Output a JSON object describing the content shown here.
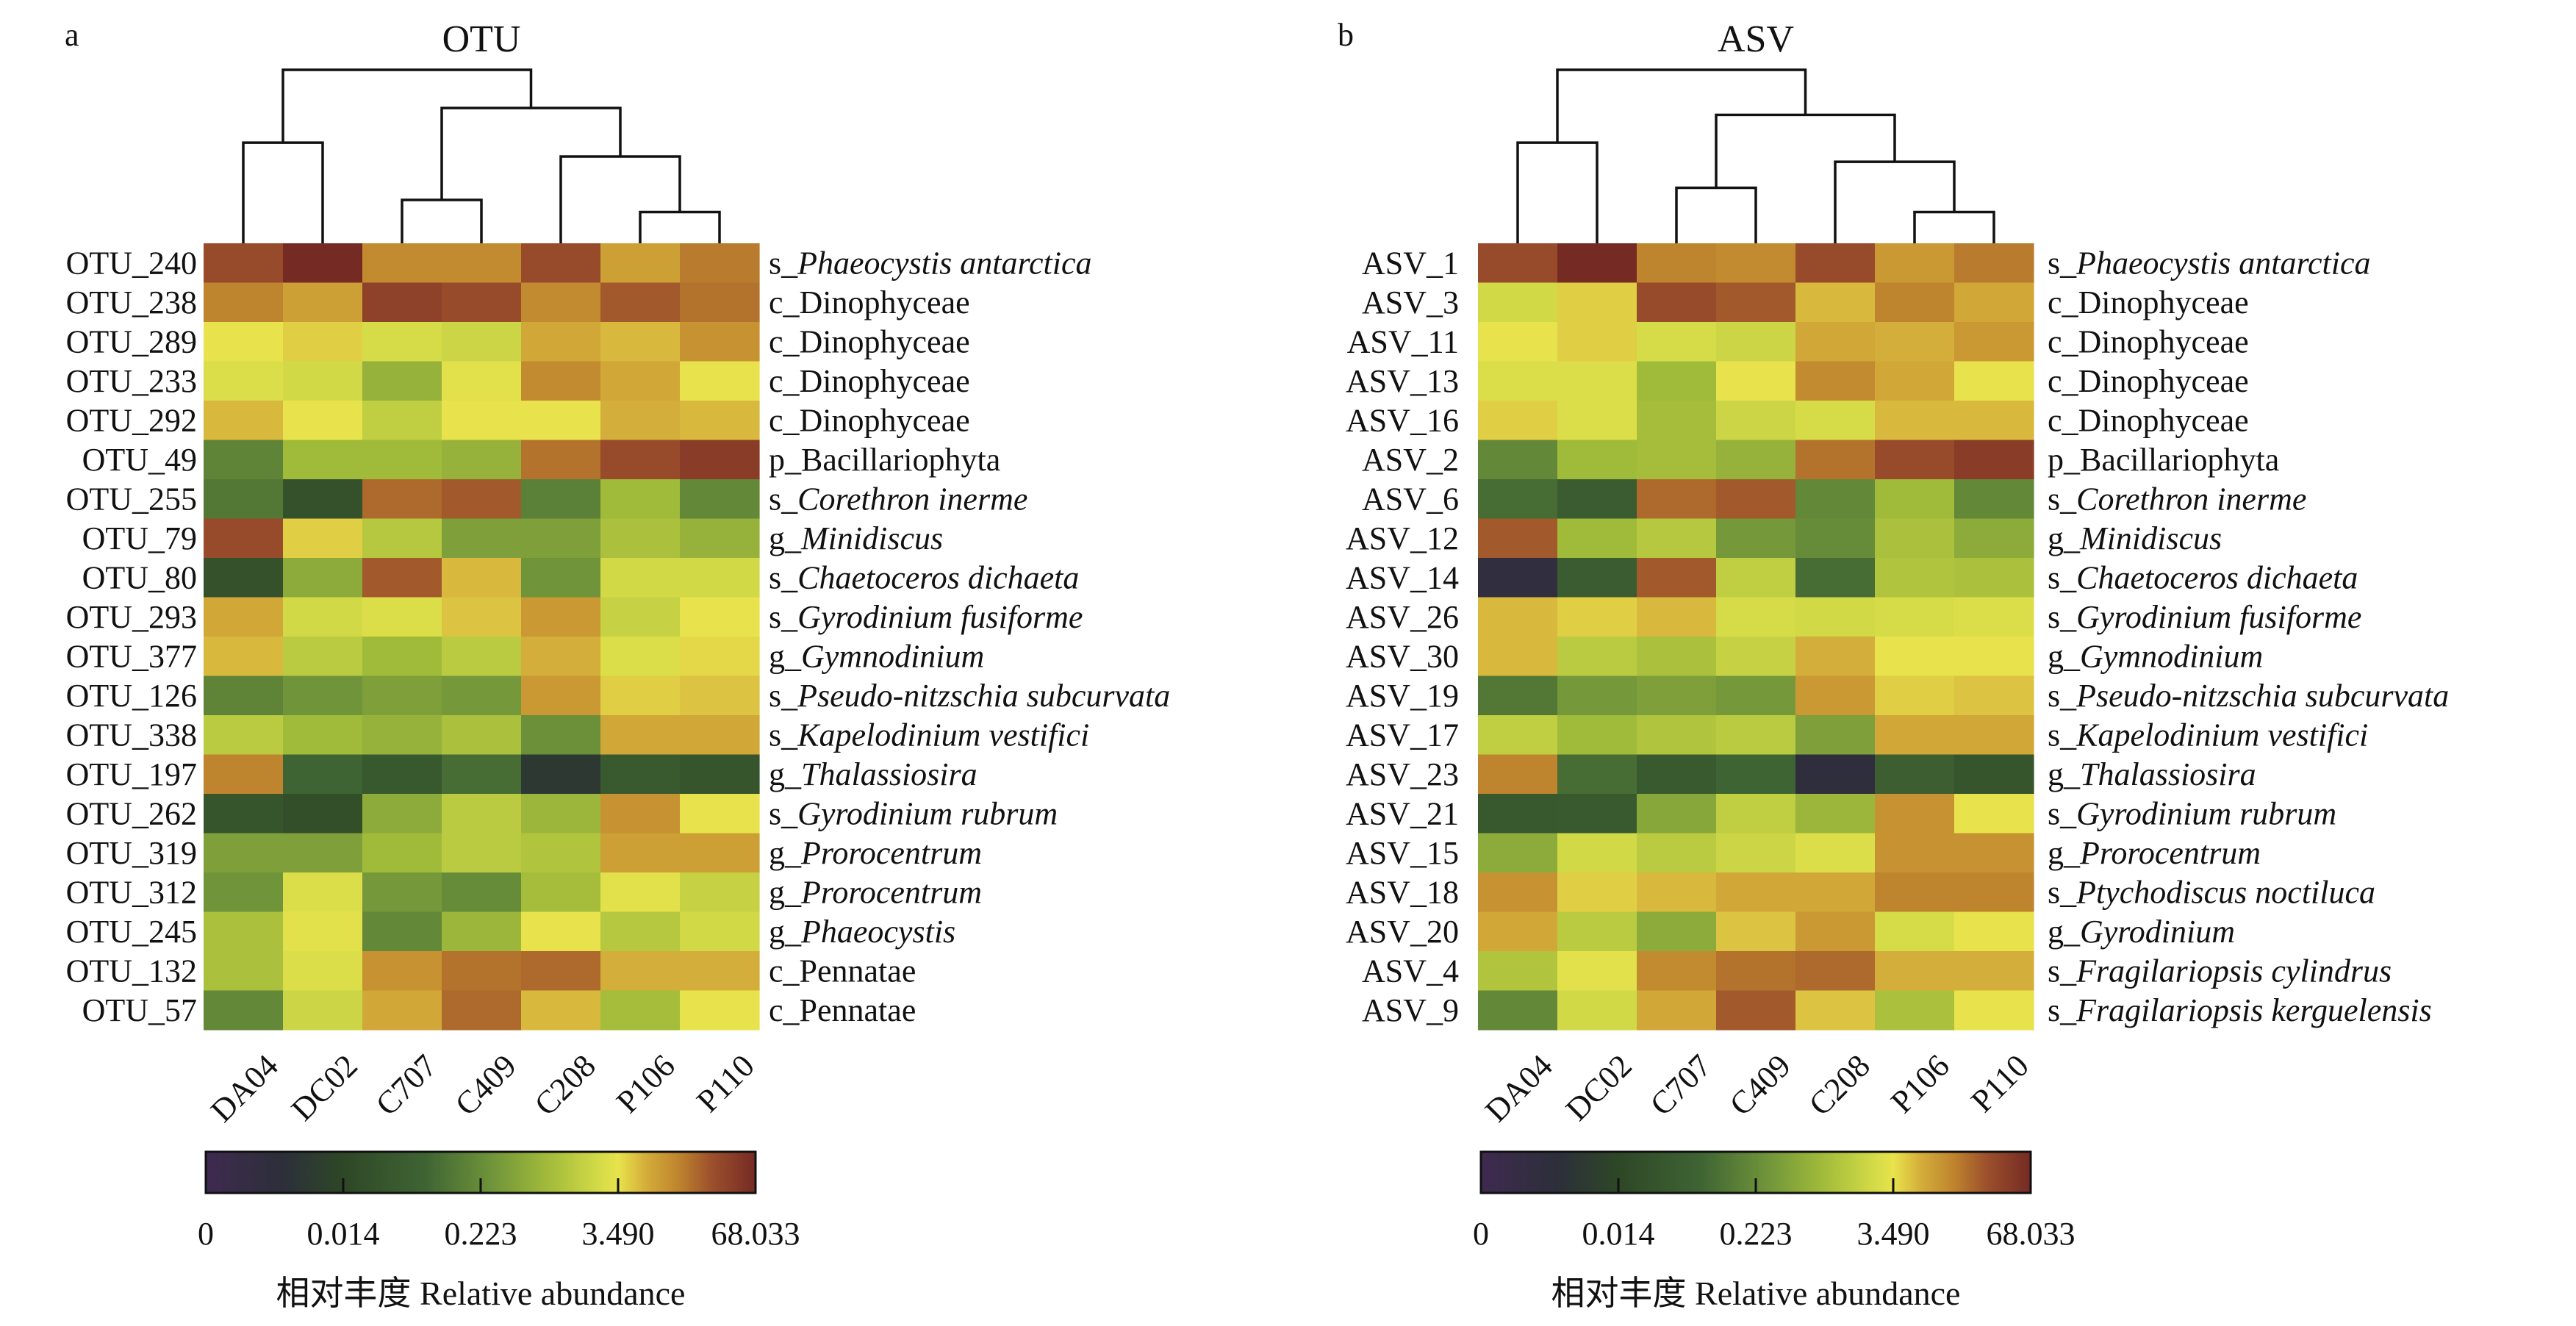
{
  "chart_data": [
    {
      "type": "heatmap",
      "panel_letter": "a",
      "title": "OTU",
      "columns": [
        "DA04",
        "DC02",
        "C707",
        "C409",
        "C208",
        "P106",
        "P110"
      ],
      "rows": [
        {
          "id": "OTU_240",
          "rank": "s_",
          "taxon": "Phaeocystis antarctica",
          "italic": true,
          "levels": [
            0.93,
            1.0,
            0.85,
            0.85,
            0.93,
            0.82,
            0.87
          ]
        },
        {
          "id": "OTU_238",
          "rank": "c_",
          "taxon": "Dinophyceae",
          "italic": false,
          "levels": [
            0.86,
            0.82,
            0.95,
            0.93,
            0.85,
            0.91,
            0.88
          ]
        },
        {
          "id": "OTU_289",
          "rank": "c_",
          "taxon": "Dinophyceae",
          "italic": false,
          "levels": [
            0.75,
            0.77,
            0.72,
            0.7,
            0.81,
            0.79,
            0.84
          ]
        },
        {
          "id": "OTU_233",
          "rank": "c_",
          "taxon": "Dinophyceae",
          "italic": false,
          "levels": [
            0.73,
            0.71,
            0.6,
            0.74,
            0.85,
            0.81,
            0.75
          ]
        },
        {
          "id": "OTU_292",
          "rank": "c_",
          "taxon": "Dinophyceae",
          "italic": false,
          "levels": [
            0.79,
            0.75,
            0.68,
            0.75,
            0.75,
            0.8,
            0.79
          ]
        },
        {
          "id": "OTU_49",
          "rank": "p_",
          "taxon": "Bacillariophyta",
          "italic": false,
          "levels": [
            0.48,
            0.62,
            0.62,
            0.6,
            0.88,
            0.93,
            0.96
          ]
        },
        {
          "id": "OTU_255",
          "rank": "s_",
          "taxon": "Corethron inerme",
          "italic": true,
          "levels": [
            0.45,
            0.3,
            0.89,
            0.91,
            0.47,
            0.62,
            0.49
          ]
        },
        {
          "id": "OTU_79",
          "rank": "g_",
          "taxon": "Minidiscus",
          "italic": true,
          "levels": [
            0.93,
            0.77,
            0.66,
            0.55,
            0.55,
            0.64,
            0.6
          ]
        },
        {
          "id": "OTU_80",
          "rank": "s_",
          "taxon": "Chaetoceros dichaeta",
          "italic": true,
          "levels": [
            0.3,
            0.58,
            0.91,
            0.79,
            0.52,
            0.71,
            0.71
          ]
        },
        {
          "id": "OTU_293",
          "rank": "s_",
          "taxon": "Gyrodinium fusiforme",
          "italic": true,
          "levels": [
            0.81,
            0.71,
            0.73,
            0.78,
            0.83,
            0.69,
            0.75
          ]
        },
        {
          "id": "OTU_377",
          "rank": "g_",
          "taxon": "Gymnodinium",
          "italic": true,
          "levels": [
            0.79,
            0.67,
            0.62,
            0.67,
            0.8,
            0.73,
            0.76
          ]
        },
        {
          "id": "OTU_126",
          "rank": "s_",
          "taxon": "Pseudo-nitzschia subcurvata",
          "italic": true,
          "levels": [
            0.48,
            0.52,
            0.55,
            0.53,
            0.83,
            0.77,
            0.78
          ]
        },
        {
          "id": "OTU_338",
          "rank": "s_",
          "taxon": "Kapelodinium vestifici",
          "italic": true,
          "levels": [
            0.67,
            0.62,
            0.6,
            0.64,
            0.51,
            0.81,
            0.81
          ]
        },
        {
          "id": "OTU_197",
          "rank": "g_",
          "taxon": "Thalassiosira",
          "italic": true,
          "levels": [
            0.86,
            0.4,
            0.34,
            0.42,
            0.18,
            0.35,
            0.32
          ]
        },
        {
          "id": "OTU_262",
          "rank": "s_",
          "taxon": "Gyrodinium rubrum",
          "italic": true,
          "levels": [
            0.32,
            0.29,
            0.58,
            0.67,
            0.61,
            0.84,
            0.75
          ]
        },
        {
          "id": "OTU_319",
          "rank": "g_",
          "taxon": "Prorocentrum",
          "italic": true,
          "levels": [
            0.55,
            0.55,
            0.62,
            0.67,
            0.65,
            0.82,
            0.82
          ]
        },
        {
          "id": "OTU_312",
          "rank": "g_",
          "taxon": "Prorocentrum",
          "italic": true,
          "levels": [
            0.52,
            0.73,
            0.53,
            0.5,
            0.63,
            0.74,
            0.69
          ]
        },
        {
          "id": "OTU_245",
          "rank": "g_",
          "taxon": "Phaeocystis",
          "italic": true,
          "levels": [
            0.64,
            0.74,
            0.49,
            0.61,
            0.75,
            0.66,
            0.71
          ]
        },
        {
          "id": "OTU_132",
          "rank": "c_",
          "taxon": "Pennatae",
          "italic": false,
          "levels": [
            0.64,
            0.73,
            0.84,
            0.88,
            0.89,
            0.8,
            0.8
          ]
        },
        {
          "id": "OTU_57",
          "rank": "c_",
          "taxon": "Pennatae",
          "italic": false,
          "levels": [
            0.49,
            0.7,
            0.81,
            0.89,
            0.79,
            0.63,
            0.75
          ]
        }
      ],
      "dendrogram": {
        "description": "column clustering",
        "merges": [
          {
            "left": "DA04",
            "right": "DC02",
            "height": 0.58
          },
          {
            "left": "C707",
            "right": "C409",
            "height": 0.25
          },
          {
            "left": "P106",
            "right": "P110",
            "height": 0.18
          },
          {
            "left": "C208",
            "right": "P106+P110",
            "height": 0.5
          },
          {
            "left": "C707+C409",
            "right": "C208+P106+P110",
            "height": 0.78
          },
          {
            "left": "DA04+DC02",
            "right": "rest",
            "height": 1.0
          }
        ]
      },
      "colorbar": {
        "label": "相对丰度 Relative abundance",
        "ticks": [
          {
            "position": 0.0,
            "label": "0"
          },
          {
            "position": 0.25,
            "label": "0.014"
          },
          {
            "position": 0.5,
            "label": "0.223"
          },
          {
            "position": 0.75,
            "label": "3.490"
          },
          {
            "position": 1.0,
            "label": "68.033"
          }
        ],
        "range": [
          0,
          68.033
        ]
      }
    },
    {
      "type": "heatmap",
      "panel_letter": "b",
      "title": "ASV",
      "columns": [
        "DA04",
        "DC02",
        "C707",
        "C409",
        "C208",
        "P106",
        "P110"
      ],
      "rows": [
        {
          "id": "ASV_1",
          "rank": "s_",
          "taxon": "Phaeocystis antarctica",
          "italic": true,
          "levels": [
            0.93,
            1.0,
            0.86,
            0.85,
            0.93,
            0.83,
            0.87
          ]
        },
        {
          "id": "ASV_3",
          "rank": "c_",
          "taxon": "Dinophyceae",
          "italic": false,
          "levels": [
            0.71,
            0.77,
            0.93,
            0.91,
            0.79,
            0.86,
            0.81
          ]
        },
        {
          "id": "ASV_11",
          "rank": "c_",
          "taxon": "Dinophyceae",
          "italic": false,
          "levels": [
            0.75,
            0.77,
            0.72,
            0.7,
            0.81,
            0.8,
            0.83
          ]
        },
        {
          "id": "ASV_13",
          "rank": "c_",
          "taxon": "Dinophyceae",
          "italic": false,
          "levels": [
            0.73,
            0.73,
            0.62,
            0.75,
            0.85,
            0.81,
            0.75
          ]
        },
        {
          "id": "ASV_16",
          "rank": "c_",
          "taxon": "Dinophyceae",
          "italic": false,
          "levels": [
            0.77,
            0.73,
            0.63,
            0.7,
            0.72,
            0.79,
            0.79
          ]
        },
        {
          "id": "ASV_2",
          "rank": "p_",
          "taxon": "Bacillariophyta",
          "italic": false,
          "levels": [
            0.49,
            0.62,
            0.63,
            0.6,
            0.88,
            0.93,
            0.96
          ]
        },
        {
          "id": "ASV_6",
          "rank": "s_",
          "taxon": "Corethron inerme",
          "italic": true,
          "levels": [
            0.42,
            0.36,
            0.89,
            0.91,
            0.49,
            0.62,
            0.49
          ]
        },
        {
          "id": "ASV_12",
          "rank": "g_",
          "taxon": "Minidiscus",
          "italic": true,
          "levels": [
            0.91,
            0.62,
            0.66,
            0.53,
            0.5,
            0.64,
            0.58
          ]
        },
        {
          "id": "ASV_14",
          "rank": "s_",
          "taxon": "Chaetoceros dichaeta",
          "italic": true,
          "levels": [
            0.1,
            0.36,
            0.91,
            0.68,
            0.42,
            0.65,
            0.64
          ]
        },
        {
          "id": "ASV_26",
          "rank": "s_",
          "taxon": "Gyrodinium fusiforme",
          "italic": true,
          "levels": [
            0.79,
            0.77,
            0.79,
            0.72,
            0.71,
            0.72,
            0.73
          ]
        },
        {
          "id": "ASV_30",
          "rank": "g_",
          "taxon": "Gymnodinium",
          "italic": true,
          "levels": [
            0.79,
            0.67,
            0.64,
            0.69,
            0.8,
            0.75,
            0.75
          ]
        },
        {
          "id": "ASV_19",
          "rank": "s_",
          "taxon": "Pseudo-nitzschia subcurvata",
          "italic": true,
          "levels": [
            0.45,
            0.53,
            0.55,
            0.53,
            0.83,
            0.77,
            0.78
          ]
        },
        {
          "id": "ASV_17",
          "rank": "s_",
          "taxon": "Kapelodinium vestifici",
          "italic": true,
          "levels": [
            0.68,
            0.62,
            0.65,
            0.67,
            0.55,
            0.81,
            0.81
          ]
        },
        {
          "id": "ASV_23",
          "rank": "g_",
          "taxon": "Thalassiosira",
          "italic": true,
          "levels": [
            0.86,
            0.42,
            0.35,
            0.4,
            0.12,
            0.37,
            0.32
          ]
        },
        {
          "id": "ASV_21",
          "rank": "s_",
          "taxon": "Gyrodinium rubrum",
          "italic": true,
          "levels": [
            0.34,
            0.35,
            0.57,
            0.68,
            0.61,
            0.84,
            0.75
          ]
        },
        {
          "id": "ASV_15",
          "rank": "g_",
          "taxon": "Prorocentrum",
          "italic": true,
          "levels": [
            0.58,
            0.71,
            0.67,
            0.7,
            0.73,
            0.84,
            0.84
          ]
        },
        {
          "id": "ASV_18",
          "rank": "s_",
          "taxon": "Ptychodiscus noctiluca",
          "italic": true,
          "levels": [
            0.84,
            0.77,
            0.79,
            0.81,
            0.81,
            0.86,
            0.86
          ]
        },
        {
          "id": "ASV_20",
          "rank": "g_",
          "taxon": "Gyrodinium",
          "italic": true,
          "levels": [
            0.81,
            0.67,
            0.58,
            0.78,
            0.83,
            0.72,
            0.75
          ]
        },
        {
          "id": "ASV_4",
          "rank": "s_",
          "taxon": "Fragilariopsis cylindrus",
          "italic": true,
          "levels": [
            0.65,
            0.74,
            0.85,
            0.88,
            0.89,
            0.8,
            0.8
          ]
        },
        {
          "id": "ASV_9",
          "rank": "s_",
          "taxon": "Fragilariopsis kerguelensis",
          "italic": true,
          "levels": [
            0.49,
            0.71,
            0.81,
            0.91,
            0.78,
            0.64,
            0.75
          ]
        }
      ],
      "dendrogram": {
        "description": "column clustering",
        "merges": [
          {
            "left": "DA04",
            "right": "DC02",
            "height": 0.58
          },
          {
            "left": "C707",
            "right": "C409",
            "height": 0.32
          },
          {
            "left": "P106",
            "right": "P110",
            "height": 0.18
          },
          {
            "left": "C208",
            "right": "P106+P110",
            "height": 0.47
          },
          {
            "left": "C707+C409",
            "right": "C208+P106+P110",
            "height": 0.74
          },
          {
            "left": "DA04+DC02",
            "right": "rest",
            "height": 1.0
          }
        ]
      },
      "colorbar": {
        "label": "相对丰度 Relative abundance",
        "ticks": [
          {
            "position": 0.0,
            "label": "0"
          },
          {
            "position": 0.25,
            "label": "0.014"
          },
          {
            "position": 0.5,
            "label": "0.223"
          },
          {
            "position": 0.75,
            "label": "3.490"
          },
          {
            "position": 1.0,
            "label": "68.033"
          }
        ],
        "range": [
          0,
          68.033
        ]
      }
    }
  ],
  "colormap": {
    "stops": [
      {
        "t": 0.0,
        "color": "#3f2a50"
      },
      {
        "t": 0.14,
        "color": "#2c2f3a"
      },
      {
        "t": 0.25,
        "color": "#2e4727"
      },
      {
        "t": 0.4,
        "color": "#3f6433"
      },
      {
        "t": 0.52,
        "color": "#6f943a"
      },
      {
        "t": 0.62,
        "color": "#a0ba3a"
      },
      {
        "t": 0.72,
        "color": "#d6dc48"
      },
      {
        "t": 0.75,
        "color": "#e8e34c"
      },
      {
        "t": 0.8,
        "color": "#d4ae3a"
      },
      {
        "t": 0.86,
        "color": "#bf842e"
      },
      {
        "t": 0.92,
        "color": "#9c502c"
      },
      {
        "t": 1.0,
        "color": "#752a24"
      }
    ]
  }
}
